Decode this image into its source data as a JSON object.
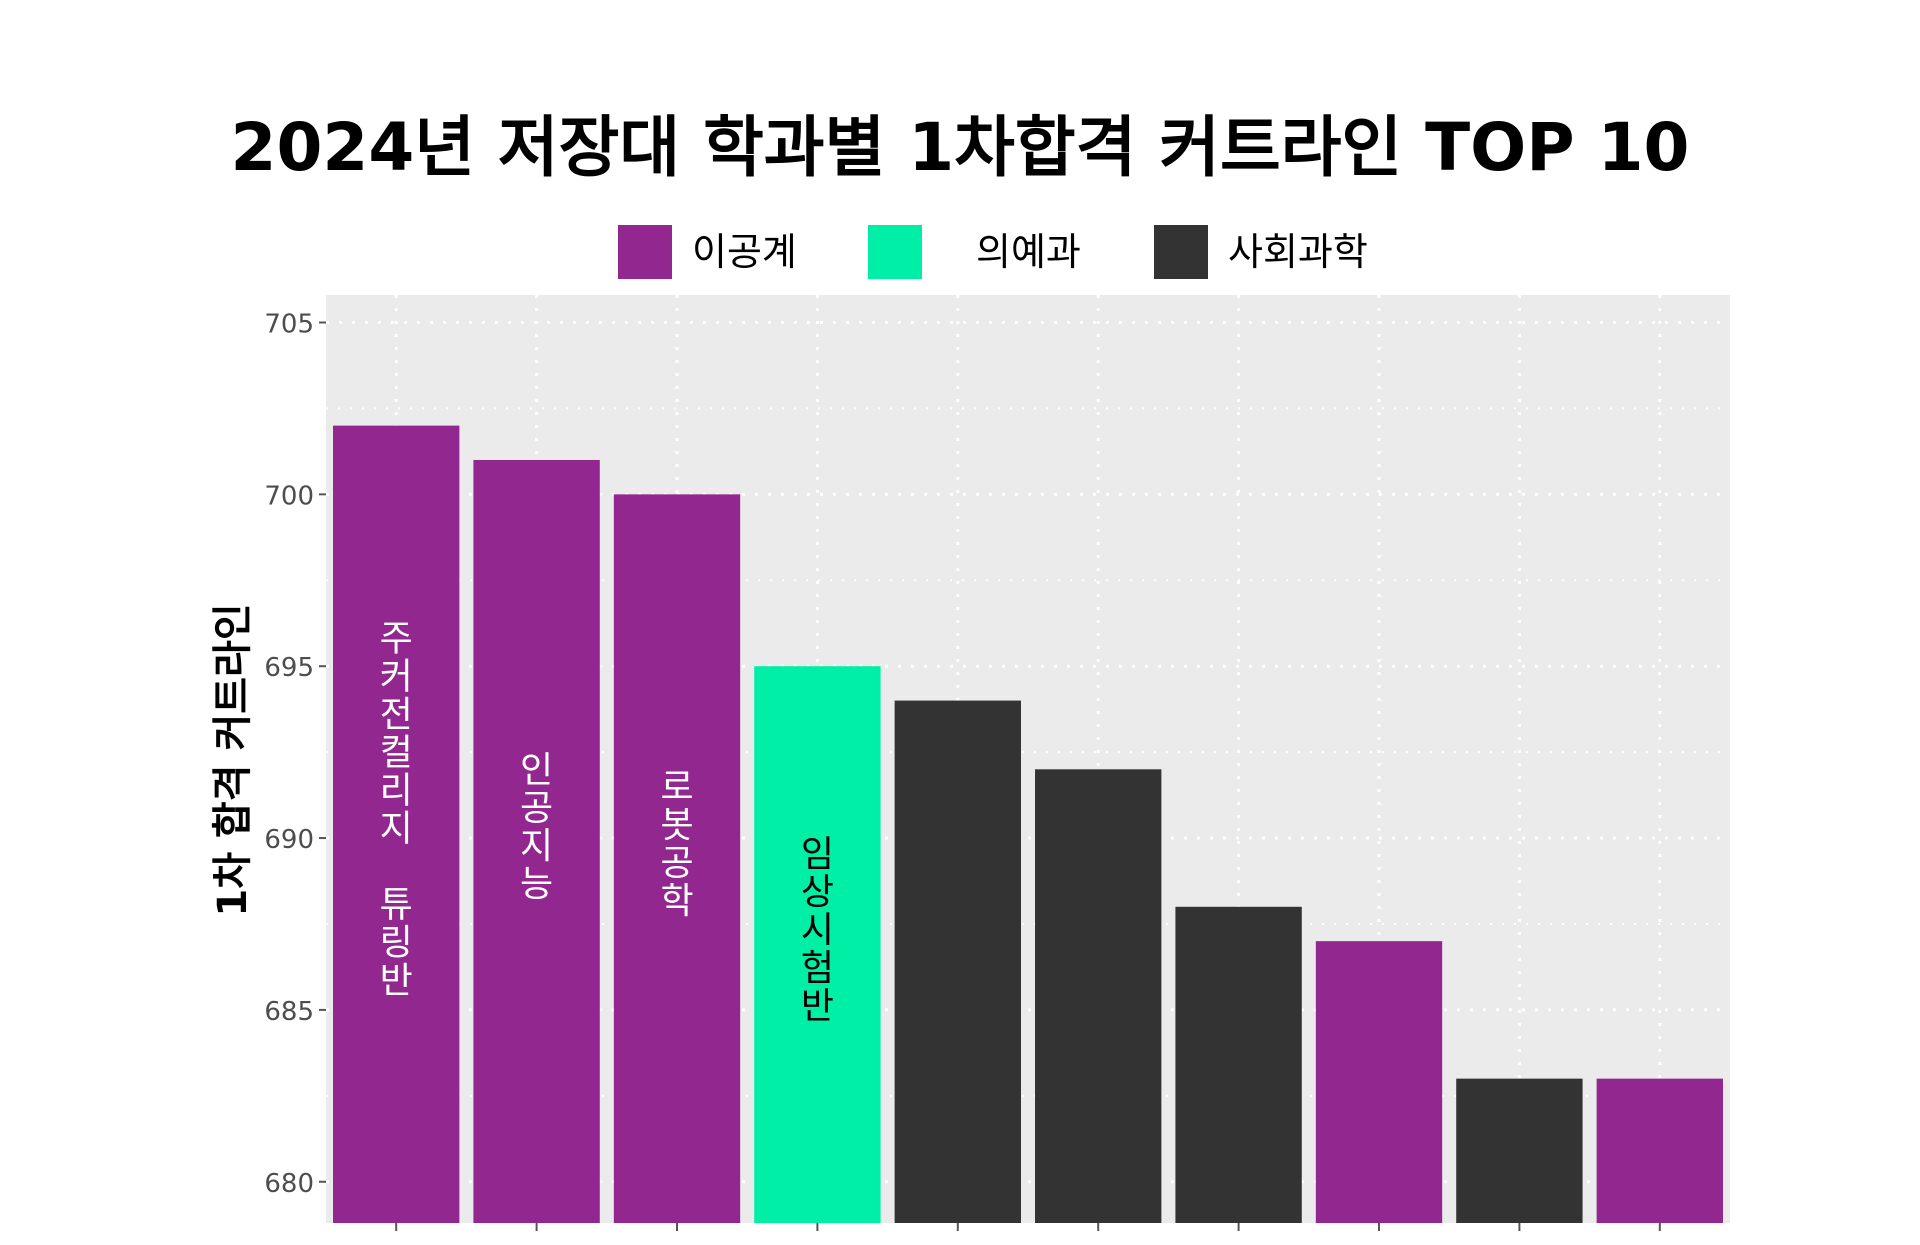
{
  "chart_data": {
    "type": "bar",
    "title": "2024년 저장대 학과별 1차합격 커트라인 TOP 10",
    "ylabel": "1차 합격 커트라인",
    "xlabel": "",
    "ylim": [
      678.8,
      705.8
    ],
    "yticks": [
      680,
      685,
      690,
      695,
      700,
      705
    ],
    "grid": true,
    "legend_position": "top",
    "legend": [
      {
        "name": "이공계",
        "color": "#92278f"
      },
      {
        "name": "의예과",
        "color": "#00efa7"
      },
      {
        "name": "사회과학",
        "color": "#333333"
      }
    ],
    "bars": [
      {
        "value": 702,
        "group": "이공계",
        "label": "주커전컬리지 튜링반"
      },
      {
        "value": 701,
        "group": "이공계",
        "label": "인공지능"
      },
      {
        "value": 700,
        "group": "이공계",
        "label": "로봇공학"
      },
      {
        "value": 695,
        "group": "의예과",
        "label": "임상시험반"
      },
      {
        "value": 694,
        "group": "사회과학",
        "label": ""
      },
      {
        "value": 692,
        "group": "사회과학",
        "label": ""
      },
      {
        "value": 688,
        "group": "사회과학",
        "label": ""
      },
      {
        "value": 687,
        "group": "이공계",
        "label": ""
      },
      {
        "value": 683,
        "group": "사회과학",
        "label": ""
      },
      {
        "value": 683,
        "group": "이공계",
        "label": ""
      }
    ]
  },
  "colors": {
    "panel_background": "#ebebeb",
    "grid": "#ffffff",
    "label_on_dark": "#ffffff",
    "label_on_light": "#000000"
  }
}
